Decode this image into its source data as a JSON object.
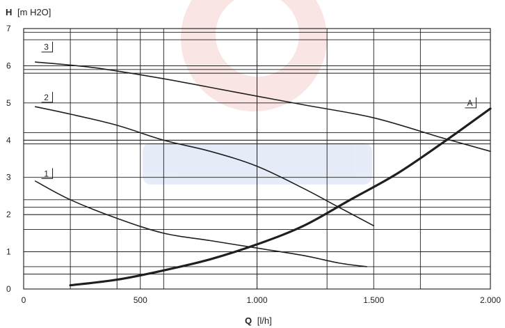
{
  "chart_data": {
    "type": "line",
    "title": "",
    "xlabel_symbol": "Q",
    "xlabel_unit": "[l/h]",
    "ylabel_symbol": "H",
    "ylabel_unit": "[m H2O]",
    "xlim": [
      0,
      2000
    ],
    "ylim": [
      0,
      7
    ],
    "x_ticks": [
      0,
      500,
      1000,
      1500,
      2000
    ],
    "x_tick_labels": [
      "0",
      "500",
      "1.000",
      "1.500",
      "2.000"
    ],
    "y_ticks": [
      0,
      1,
      2,
      3,
      4,
      5,
      6,
      7
    ],
    "y_tick_labels": [
      "0",
      "1",
      "2",
      "3",
      "4",
      "5",
      "6",
      "7"
    ],
    "vertical_grid": [
      200,
      400,
      600,
      1000,
      1300,
      1700
    ],
    "horizontal_grid": [
      0.4,
      0.6,
      1.0,
      1.6,
      2.0,
      2.2,
      2.4,
      3.9,
      4.0,
      4.2,
      5.8,
      5.9,
      6.0,
      6.7,
      6.9
    ],
    "grid": true,
    "series": [
      {
        "name": "1",
        "x": [
          50,
          200,
          400,
          600,
          800,
          1000,
          1200,
          1350,
          1470
        ],
        "y": [
          2.9,
          2.4,
          1.9,
          1.5,
          1.3,
          1.1,
          0.9,
          0.7,
          0.6
        ]
      },
      {
        "name": "2",
        "x": [
          50,
          200,
          400,
          600,
          800,
          1000,
          1200,
          1350,
          1500
        ],
        "y": [
          4.9,
          4.7,
          4.4,
          4.0,
          3.7,
          3.3,
          2.7,
          2.2,
          1.7
        ]
      },
      {
        "name": "3",
        "x": [
          50,
          300,
          600,
          900,
          1200,
          1500,
          1800,
          2000
        ],
        "y": [
          6.1,
          5.95,
          5.65,
          5.3,
          4.95,
          4.6,
          4.05,
          3.7
        ]
      },
      {
        "name": "A",
        "x": [
          200,
          400,
          600,
          800,
          1000,
          1200,
          1400,
          1600,
          1800,
          2000
        ],
        "y": [
          0.1,
          0.25,
          0.5,
          0.8,
          1.2,
          1.7,
          2.4,
          3.1,
          3.95,
          4.85
        ]
      }
    ],
    "series_labels": [
      {
        "text": "3",
        "x": 100,
        "y": 6.5
      },
      {
        "text": "2",
        "x": 100,
        "y": 5.15
      },
      {
        "text": "1",
        "x": 100,
        "y": 3.1
      },
      {
        "text": "A",
        "x": 1915,
        "y": 5.0
      }
    ]
  }
}
